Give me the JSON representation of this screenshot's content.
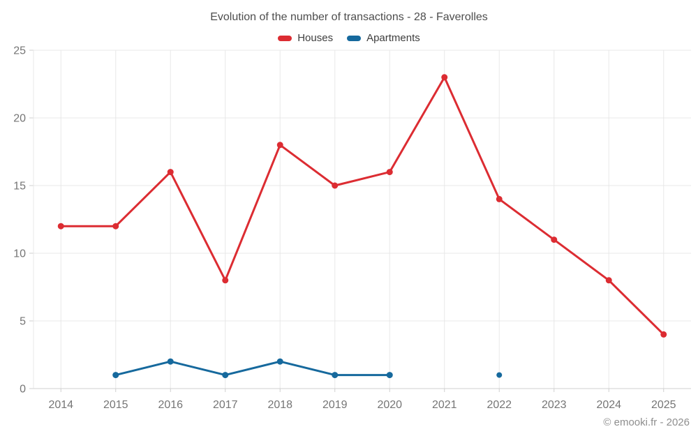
{
  "title": "Evolution of the number of transactions - 28 - Faverolles",
  "footer": "© emooki.fr - 2026",
  "colors": {
    "houses": "#dc2c32",
    "apartments": "#16699d",
    "grid": "#e8e8e8",
    "axis": "#cfcfcf",
    "tick_label": "#757575",
    "title_text": "#4d4d4d",
    "legend_text": "#3d3d3d",
    "footer_text": "#8e8e8e",
    "background": "#ffffff"
  },
  "legend": {
    "items": [
      {
        "label": "Houses",
        "color": "#dc2c32"
      },
      {
        "label": "Apartments",
        "color": "#16699d"
      }
    ]
  },
  "chart_data": {
    "type": "line",
    "title": "Evolution of the number of transactions - 28 - Faverolles",
    "categories": [
      "2014",
      "2015",
      "2016",
      "2017",
      "2018",
      "2019",
      "2020",
      "2021",
      "2022",
      "2023",
      "2024",
      "2025"
    ],
    "series": [
      {
        "name": "Houses",
        "color": "#dc2c32",
        "values": [
          12,
          12,
          16,
          8,
          18,
          15,
          16,
          23,
          14,
          11,
          8,
          4
        ]
      },
      {
        "name": "Apartments",
        "color": "#16699d",
        "values": [
          null,
          1,
          2,
          1,
          2,
          1,
          1,
          null,
          1,
          null,
          null,
          null
        ]
      }
    ],
    "xlabel": "",
    "ylabel": "",
    "ylim": [
      0,
      25
    ],
    "yticks": [
      0,
      5,
      10,
      15,
      20,
      25
    ],
    "grid": true,
    "legend_position": "top",
    "annotation": "© emooki.fr - 2026"
  }
}
